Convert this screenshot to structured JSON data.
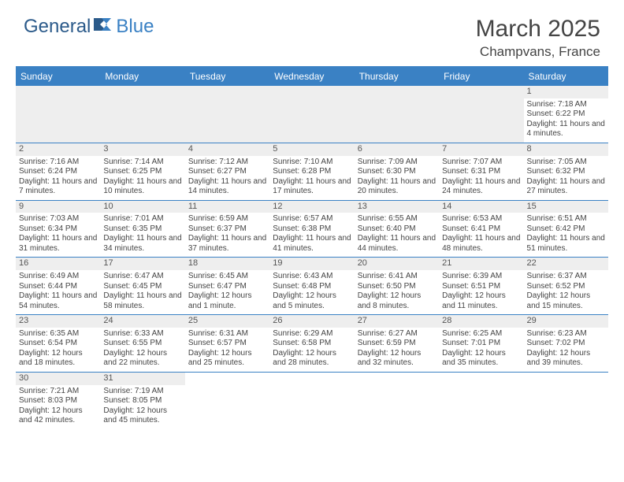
{
  "logo": {
    "text1": "General",
    "text2": "Blue"
  },
  "header": {
    "month": "March 2025",
    "location": "Champvans, France"
  },
  "colors": {
    "accent": "#3a81c4",
    "logo": "#2b5a8a",
    "cell_header_bg": "#eeeeee"
  },
  "daynames": [
    "Sunday",
    "Monday",
    "Tuesday",
    "Wednesday",
    "Thursday",
    "Friday",
    "Saturday"
  ],
  "weeks": [
    [
      null,
      null,
      null,
      null,
      null,
      null,
      {
        "n": "1",
        "sr": "Sunrise: 7:18 AM",
        "ss": "Sunset: 6:22 PM",
        "dl": "Daylight: 11 hours and 4 minutes."
      }
    ],
    [
      {
        "n": "2",
        "sr": "Sunrise: 7:16 AM",
        "ss": "Sunset: 6:24 PM",
        "dl": "Daylight: 11 hours and 7 minutes."
      },
      {
        "n": "3",
        "sr": "Sunrise: 7:14 AM",
        "ss": "Sunset: 6:25 PM",
        "dl": "Daylight: 11 hours and 10 minutes."
      },
      {
        "n": "4",
        "sr": "Sunrise: 7:12 AM",
        "ss": "Sunset: 6:27 PM",
        "dl": "Daylight: 11 hours and 14 minutes."
      },
      {
        "n": "5",
        "sr": "Sunrise: 7:10 AM",
        "ss": "Sunset: 6:28 PM",
        "dl": "Daylight: 11 hours and 17 minutes."
      },
      {
        "n": "6",
        "sr": "Sunrise: 7:09 AM",
        "ss": "Sunset: 6:30 PM",
        "dl": "Daylight: 11 hours and 20 minutes."
      },
      {
        "n": "7",
        "sr": "Sunrise: 7:07 AM",
        "ss": "Sunset: 6:31 PM",
        "dl": "Daylight: 11 hours and 24 minutes."
      },
      {
        "n": "8",
        "sr": "Sunrise: 7:05 AM",
        "ss": "Sunset: 6:32 PM",
        "dl": "Daylight: 11 hours and 27 minutes."
      }
    ],
    [
      {
        "n": "9",
        "sr": "Sunrise: 7:03 AM",
        "ss": "Sunset: 6:34 PM",
        "dl": "Daylight: 11 hours and 31 minutes."
      },
      {
        "n": "10",
        "sr": "Sunrise: 7:01 AM",
        "ss": "Sunset: 6:35 PM",
        "dl": "Daylight: 11 hours and 34 minutes."
      },
      {
        "n": "11",
        "sr": "Sunrise: 6:59 AM",
        "ss": "Sunset: 6:37 PM",
        "dl": "Daylight: 11 hours and 37 minutes."
      },
      {
        "n": "12",
        "sr": "Sunrise: 6:57 AM",
        "ss": "Sunset: 6:38 PM",
        "dl": "Daylight: 11 hours and 41 minutes."
      },
      {
        "n": "13",
        "sr": "Sunrise: 6:55 AM",
        "ss": "Sunset: 6:40 PM",
        "dl": "Daylight: 11 hours and 44 minutes."
      },
      {
        "n": "14",
        "sr": "Sunrise: 6:53 AM",
        "ss": "Sunset: 6:41 PM",
        "dl": "Daylight: 11 hours and 48 minutes."
      },
      {
        "n": "15",
        "sr": "Sunrise: 6:51 AM",
        "ss": "Sunset: 6:42 PM",
        "dl": "Daylight: 11 hours and 51 minutes."
      }
    ],
    [
      {
        "n": "16",
        "sr": "Sunrise: 6:49 AM",
        "ss": "Sunset: 6:44 PM",
        "dl": "Daylight: 11 hours and 54 minutes."
      },
      {
        "n": "17",
        "sr": "Sunrise: 6:47 AM",
        "ss": "Sunset: 6:45 PM",
        "dl": "Daylight: 11 hours and 58 minutes."
      },
      {
        "n": "18",
        "sr": "Sunrise: 6:45 AM",
        "ss": "Sunset: 6:47 PM",
        "dl": "Daylight: 12 hours and 1 minute."
      },
      {
        "n": "19",
        "sr": "Sunrise: 6:43 AM",
        "ss": "Sunset: 6:48 PM",
        "dl": "Daylight: 12 hours and 5 minutes."
      },
      {
        "n": "20",
        "sr": "Sunrise: 6:41 AM",
        "ss": "Sunset: 6:50 PM",
        "dl": "Daylight: 12 hours and 8 minutes."
      },
      {
        "n": "21",
        "sr": "Sunrise: 6:39 AM",
        "ss": "Sunset: 6:51 PM",
        "dl": "Daylight: 12 hours and 11 minutes."
      },
      {
        "n": "22",
        "sr": "Sunrise: 6:37 AM",
        "ss": "Sunset: 6:52 PM",
        "dl": "Daylight: 12 hours and 15 minutes."
      }
    ],
    [
      {
        "n": "23",
        "sr": "Sunrise: 6:35 AM",
        "ss": "Sunset: 6:54 PM",
        "dl": "Daylight: 12 hours and 18 minutes."
      },
      {
        "n": "24",
        "sr": "Sunrise: 6:33 AM",
        "ss": "Sunset: 6:55 PM",
        "dl": "Daylight: 12 hours and 22 minutes."
      },
      {
        "n": "25",
        "sr": "Sunrise: 6:31 AM",
        "ss": "Sunset: 6:57 PM",
        "dl": "Daylight: 12 hours and 25 minutes."
      },
      {
        "n": "26",
        "sr": "Sunrise: 6:29 AM",
        "ss": "Sunset: 6:58 PM",
        "dl": "Daylight: 12 hours and 28 minutes."
      },
      {
        "n": "27",
        "sr": "Sunrise: 6:27 AM",
        "ss": "Sunset: 6:59 PM",
        "dl": "Daylight: 12 hours and 32 minutes."
      },
      {
        "n": "28",
        "sr": "Sunrise: 6:25 AM",
        "ss": "Sunset: 7:01 PM",
        "dl": "Daylight: 12 hours and 35 minutes."
      },
      {
        "n": "29",
        "sr": "Sunrise: 6:23 AM",
        "ss": "Sunset: 7:02 PM",
        "dl": "Daylight: 12 hours and 39 minutes."
      }
    ],
    [
      {
        "n": "30",
        "sr": "Sunrise: 7:21 AM",
        "ss": "Sunset: 8:03 PM",
        "dl": "Daylight: 12 hours and 42 minutes."
      },
      {
        "n": "31",
        "sr": "Sunrise: 7:19 AM",
        "ss": "Sunset: 8:05 PM",
        "dl": "Daylight: 12 hours and 45 minutes."
      },
      null,
      null,
      null,
      null,
      null
    ]
  ]
}
